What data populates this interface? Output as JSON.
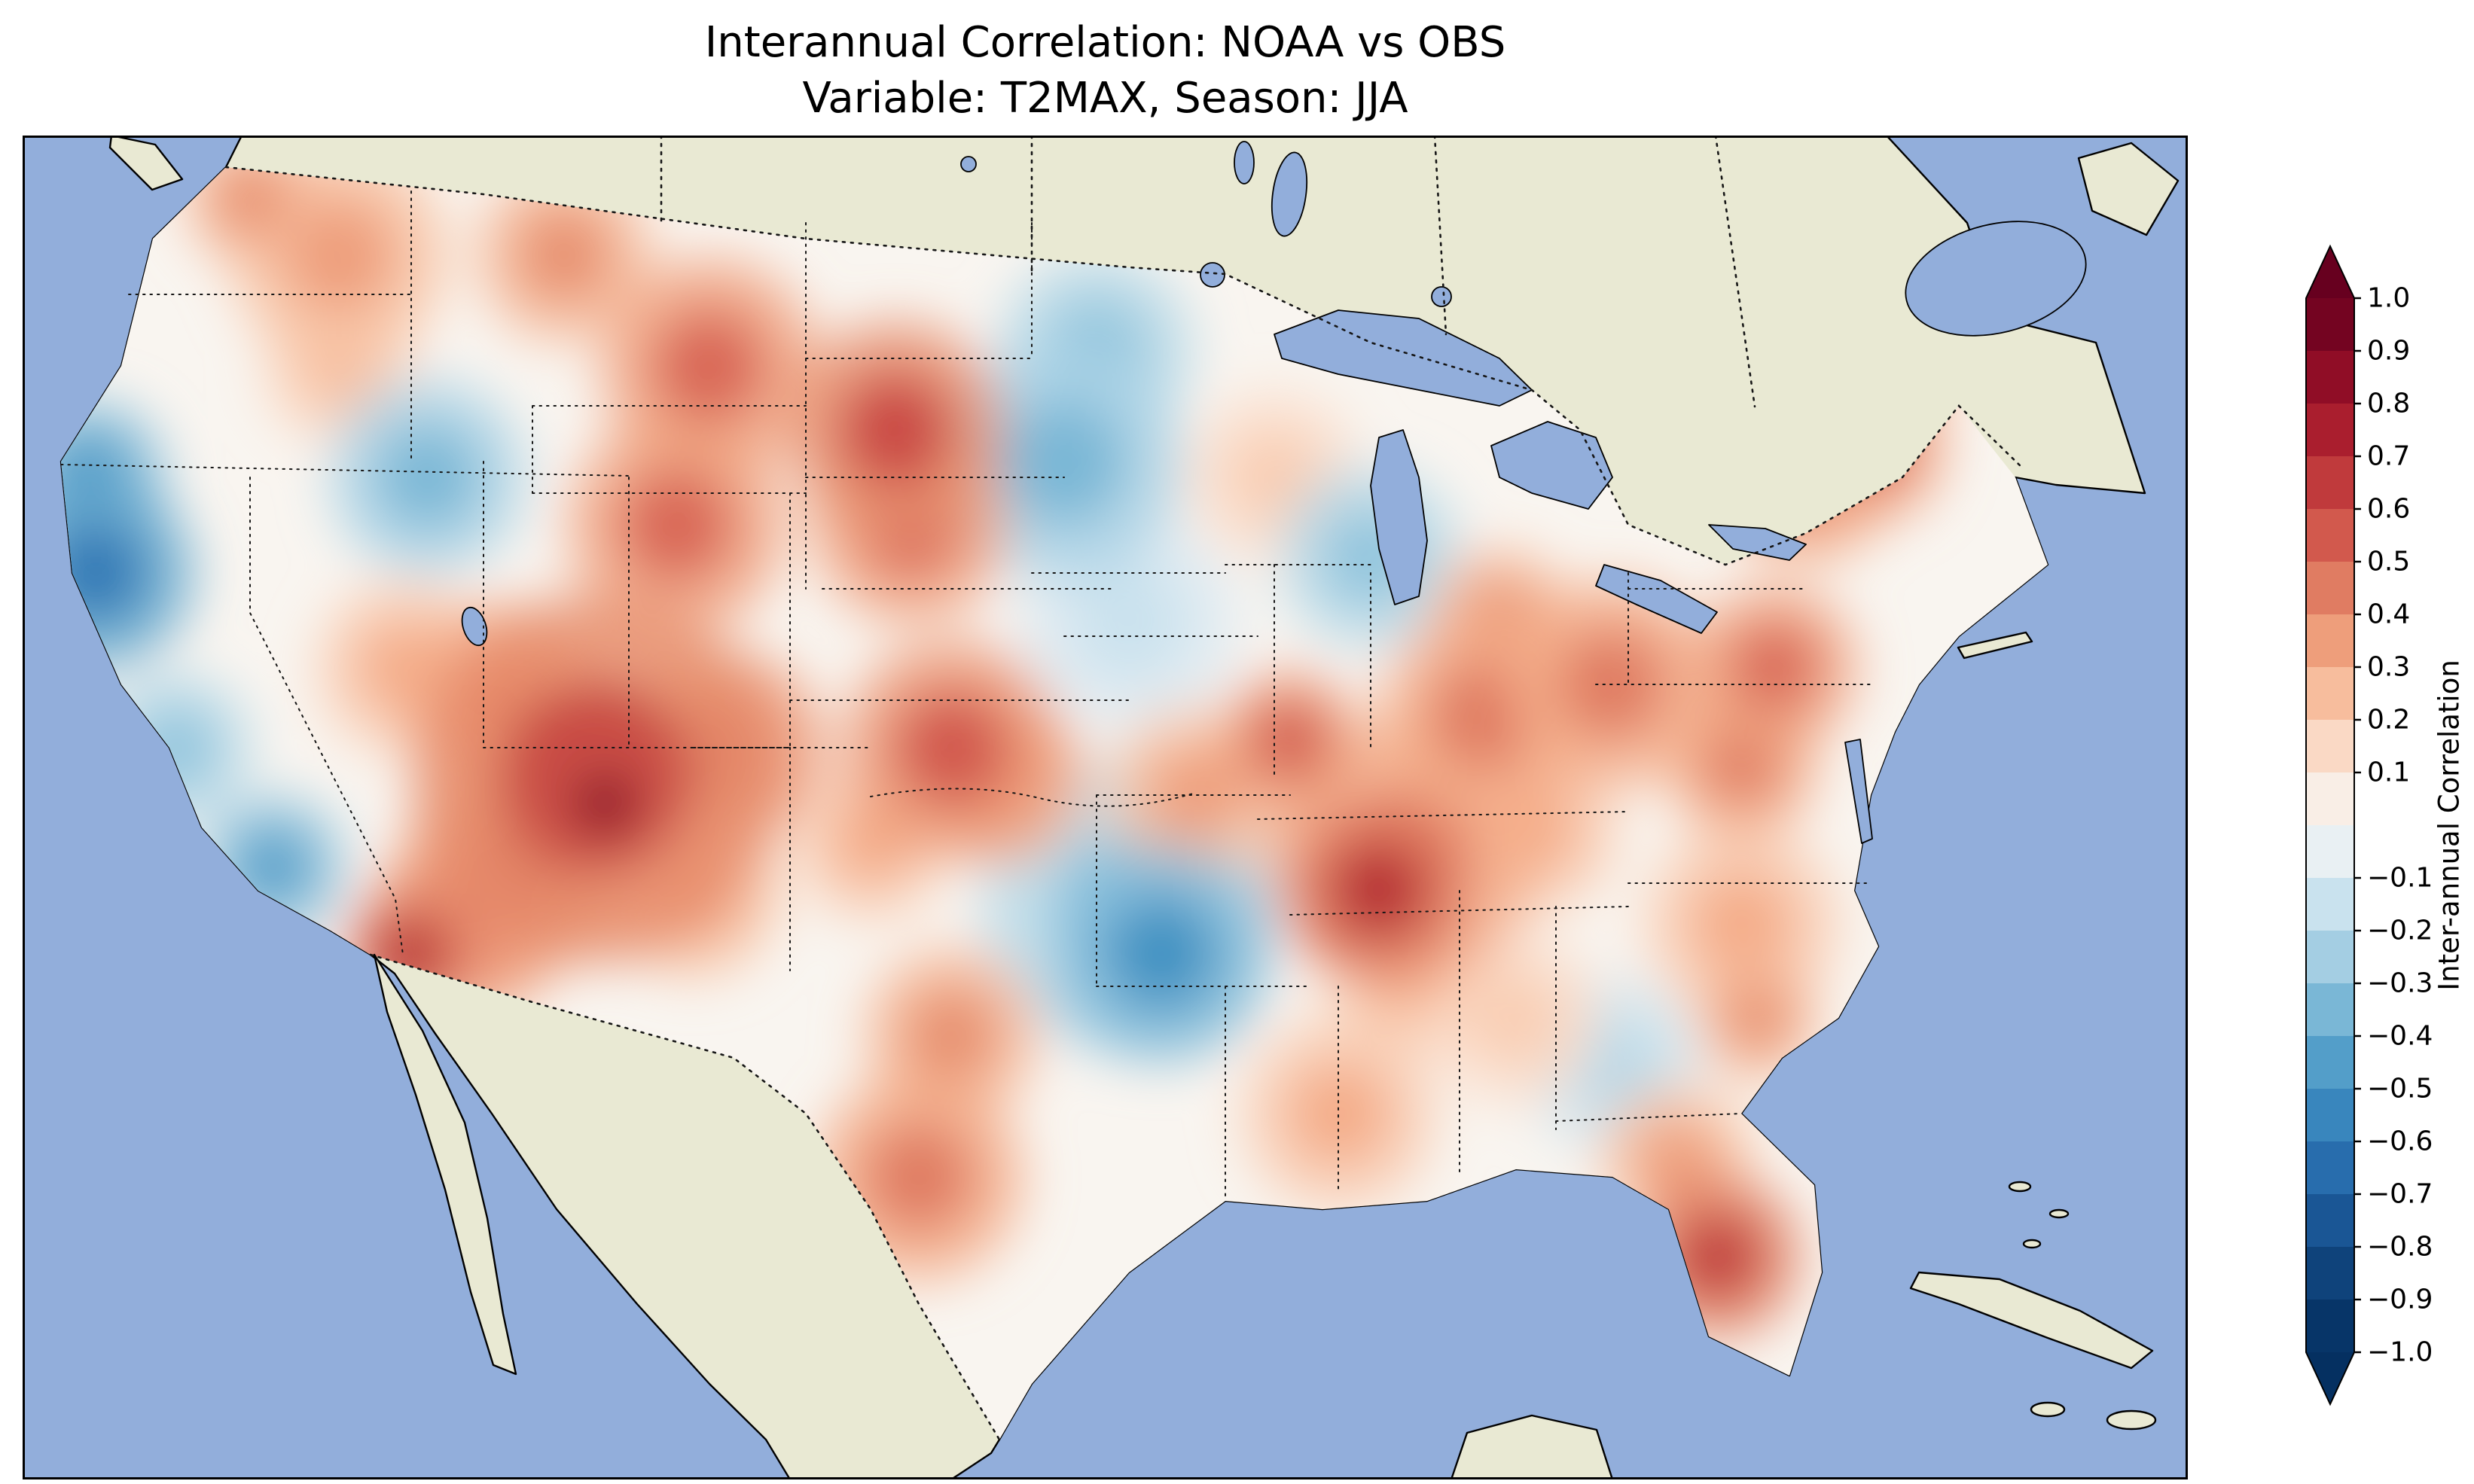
{
  "figure": {
    "title_line1": "Interannual Correlation: NOAA vs OBS",
    "title_line2": "Variable: T2MAX, Season: JJA"
  },
  "colorbar": {
    "label": "Inter-annual Correlation",
    "extend": "both",
    "colormap": "RdBu_r",
    "level_min": -1.0,
    "level_max": 1.0,
    "level_step": 0.1,
    "ticks": [
      {
        "label": "1.0",
        "value": 1.0
      },
      {
        "label": "0.9",
        "value": 0.9
      },
      {
        "label": "0.8",
        "value": 0.8
      },
      {
        "label": "0.7",
        "value": 0.7
      },
      {
        "label": "0.6",
        "value": 0.6
      },
      {
        "label": "0.5",
        "value": 0.5
      },
      {
        "label": "0.4",
        "value": 0.4
      },
      {
        "label": "0.3",
        "value": 0.3
      },
      {
        "label": "0.2",
        "value": 0.2
      },
      {
        "label": "0.1",
        "value": 0.1
      },
      {
        "label": "−0.1",
        "value": -0.1
      },
      {
        "label": "−0.2",
        "value": -0.2
      },
      {
        "label": "−0.3",
        "value": -0.3
      },
      {
        "label": "−0.4",
        "value": -0.4
      },
      {
        "label": "−0.5",
        "value": -0.5
      },
      {
        "label": "−0.6",
        "value": -0.6
      },
      {
        "label": "−0.7",
        "value": -0.7
      },
      {
        "label": "−0.8",
        "value": -0.8
      },
      {
        "label": "−0.9",
        "value": -0.9
      },
      {
        "label": "−1.0",
        "value": -1.0
      }
    ],
    "colormap_stops": [
      [
        -1.0,
        "#053061"
      ],
      [
        -0.9,
        "#0a3a70"
      ],
      [
        -0.8,
        "#144c86"
      ],
      [
        -0.7,
        "#2061a4"
      ],
      [
        -0.6,
        "#3079b6"
      ],
      [
        -0.5,
        "#4393c3"
      ],
      [
        -0.4,
        "#64a9cf"
      ],
      [
        -0.3,
        "#90c4dd"
      ],
      [
        -0.2,
        "#b8d9e9"
      ],
      [
        -0.1,
        "#dbeaf2"
      ],
      [
        0.0,
        "#f7f6f4"
      ],
      [
        0.1,
        "#fbe5d8"
      ],
      [
        0.2,
        "#f9cdb2"
      ],
      [
        0.3,
        "#f4ac88"
      ],
      [
        0.4,
        "#e78f6e"
      ],
      [
        0.5,
        "#d96856"
      ],
      [
        0.6,
        "#ca4a44"
      ],
      [
        0.7,
        "#b62a33"
      ],
      [
        0.8,
        "#9e1128"
      ],
      [
        0.9,
        "#810823"
      ],
      [
        1.0,
        "#67001f"
      ]
    ]
  },
  "map": {
    "colors": {
      "ocean": "#92aedb",
      "land": "#e9e9d3",
      "us_base": "#f9f5f0",
      "coastline": "#000000"
    }
  },
  "chart_data": {
    "type": "heatmap",
    "title": "Interannual Correlation: NOAA vs OBS",
    "subtitle": "Variable: T2MAX, Season: JJA",
    "variable": "T2MAX",
    "season": "JJA",
    "comparison": [
      "NOAA",
      "OBS"
    ],
    "value_name": "Inter-annual Correlation",
    "value_range": [
      -1.0,
      1.0
    ],
    "region": "Contiguous United States",
    "legend_position": "right",
    "points": [
      {
        "fx": 0.269,
        "fy": 0.497,
        "value": 0.85,
        "r": 0.032
      },
      {
        "fx": 0.265,
        "fy": 0.479,
        "value": 0.62,
        "r": 0.085
      },
      {
        "fx": 0.228,
        "fy": 0.544,
        "value": 0.55,
        "r": 0.05
      },
      {
        "fx": 0.22,
        "fy": 0.42,
        "value": 0.45,
        "r": 0.045
      },
      {
        "fx": 0.302,
        "fy": 0.29,
        "value": 0.5,
        "r": 0.05
      },
      {
        "fx": 0.317,
        "fy": 0.172,
        "value": 0.5,
        "r": 0.05
      },
      {
        "fx": 0.25,
        "fy": 0.089,
        "value": 0.4,
        "r": 0.04
      },
      {
        "fx": 0.403,
        "fy": 0.219,
        "value": 0.6,
        "r": 0.05
      },
      {
        "fx": 0.41,
        "fy": 0.29,
        "value": 0.5,
        "r": 0.045
      },
      {
        "fx": 0.187,
        "fy": 0.254,
        "value": -0.35,
        "r": 0.045
      },
      {
        "fx": 0.034,
        "fy": 0.325,
        "value": -0.6,
        "r": 0.045
      },
      {
        "fx": 0.031,
        "fy": 0.254,
        "value": -0.5,
        "r": 0.035
      },
      {
        "fx": 0.071,
        "fy": 0.456,
        "value": -0.3,
        "r": 0.035
      },
      {
        "fx": 0.116,
        "fy": 0.544,
        "value": -0.45,
        "r": 0.033
      },
      {
        "fx": 0.179,
        "fy": 0.609,
        "value": 0.7,
        "r": 0.03
      },
      {
        "fx": 0.205,
        "fy": 0.586,
        "value": 0.5,
        "r": 0.045
      },
      {
        "fx": 0.146,
        "fy": 0.089,
        "value": 0.35,
        "r": 0.05
      },
      {
        "fx": 0.429,
        "fy": 0.456,
        "value": 0.55,
        "r": 0.05
      },
      {
        "fx": 0.451,
        "fy": 0.479,
        "value": 0.45,
        "r": 0.04
      },
      {
        "fx": 0.481,
        "fy": 0.243,
        "value": -0.35,
        "r": 0.055
      },
      {
        "fx": 0.496,
        "fy": 0.16,
        "value": -0.3,
        "r": 0.045
      },
      {
        "fx": 0.511,
        "fy": 0.361,
        "value": -0.15,
        "r": 0.05
      },
      {
        "fx": 0.526,
        "fy": 0.609,
        "value": -0.5,
        "r": 0.05
      },
      {
        "fx": 0.511,
        "fy": 0.574,
        "value": -0.3,
        "r": 0.068
      },
      {
        "fx": 0.541,
        "fy": 0.491,
        "value": 0.35,
        "r": 0.04
      },
      {
        "fx": 0.626,
        "fy": 0.562,
        "value": 0.7,
        "r": 0.042
      },
      {
        "fx": 0.637,
        "fy": 0.538,
        "value": 0.45,
        "r": 0.062
      },
      {
        "fx": 0.585,
        "fy": 0.45,
        "value": 0.55,
        "r": 0.032
      },
      {
        "fx": 0.675,
        "fy": 0.432,
        "value": 0.45,
        "r": 0.048
      },
      {
        "fx": 0.734,
        "fy": 0.408,
        "value": 0.45,
        "r": 0.048
      },
      {
        "fx": 0.622,
        "fy": 0.314,
        "value": -0.3,
        "r": 0.042
      },
      {
        "fx": 0.578,
        "fy": 0.254,
        "value": 0.2,
        "r": 0.04
      },
      {
        "fx": 0.682,
        "fy": 0.361,
        "value": 0.4,
        "r": 0.033
      },
      {
        "fx": 0.823,
        "fy": 0.254,
        "value": 0.45,
        "r": 0.04
      },
      {
        "fx": 0.853,
        "fy": 0.231,
        "value": 0.5,
        "r": 0.035
      },
      {
        "fx": 0.87,
        "fy": 0.15,
        "value": 0.3,
        "r": 0.035
      },
      {
        "fx": 0.809,
        "fy": 0.396,
        "value": 0.5,
        "r": 0.038
      },
      {
        "fx": 0.794,
        "fy": 0.467,
        "value": 0.45,
        "r": 0.035
      },
      {
        "fx": 0.794,
        "fy": 0.586,
        "value": 0.3,
        "r": 0.045
      },
      {
        "fx": 0.734,
        "fy": 0.692,
        "value": -0.2,
        "r": 0.04
      },
      {
        "fx": 0.689,
        "fy": 0.657,
        "value": 0.2,
        "r": 0.04
      },
      {
        "fx": 0.783,
        "fy": 0.834,
        "value": 0.65,
        "r": 0.038
      },
      {
        "fx": 0.764,
        "fy": 0.763,
        "value": 0.35,
        "r": 0.035
      },
      {
        "fx": 0.414,
        "fy": 0.775,
        "value": 0.45,
        "r": 0.048
      },
      {
        "fx": 0.429,
        "fy": 0.669,
        "value": 0.4,
        "r": 0.04
      },
      {
        "fx": 0.608,
        "fy": 0.728,
        "value": 0.3,
        "r": 0.045
      },
      {
        "fx": 0.31,
        "fy": 0.562,
        "value": 0.35,
        "r": 0.04
      },
      {
        "fx": 0.325,
        "fy": 0.456,
        "value": 0.55,
        "r": 0.045
      },
      {
        "fx": 0.697,
        "fy": 0.515,
        "value": 0.3,
        "r": 0.04
      },
      {
        "fx": 0.801,
        "fy": 0.657,
        "value": 0.4,
        "r": 0.028
      },
      {
        "fx": 0.637,
        "fy": 0.633,
        "value": 0.25,
        "r": 0.035
      },
      {
        "fx": 0.176,
        "fy": 0.396,
        "value": 0.3,
        "r": 0.04
      },
      {
        "fx": 0.146,
        "fy": 0.172,
        "value": 0.25,
        "r": 0.035
      },
      {
        "fx": 0.392,
        "fy": 0.527,
        "value": 0.3,
        "r": 0.035
      },
      {
        "fx": 0.105,
        "fy": 0.047,
        "value": 0.4,
        "r": 0.03
      }
    ]
  }
}
